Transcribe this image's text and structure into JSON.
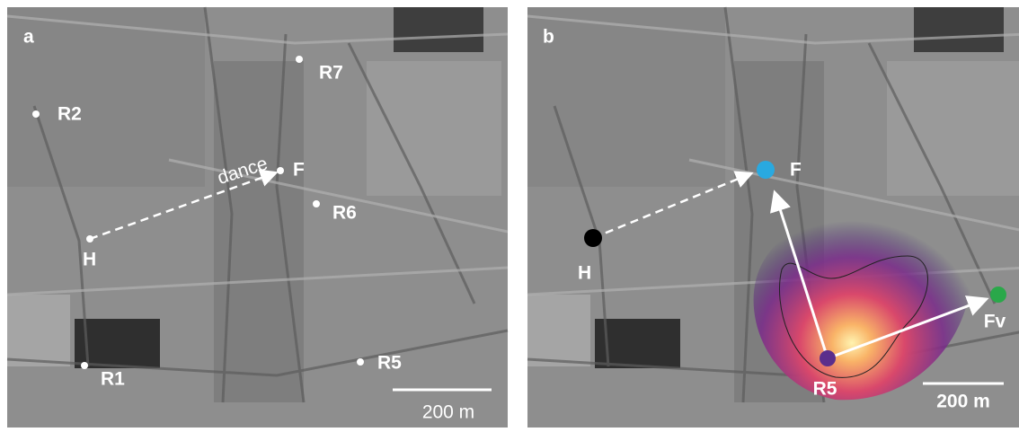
{
  "panels": [
    {
      "label": "a",
      "points": [
        "R7",
        "R2",
        "F",
        "R6",
        "H",
        "R1",
        "R5"
      ],
      "arrow_label": "dance",
      "scale_bar": "200 m"
    },
    {
      "label": "b",
      "points": [
        "H",
        "F",
        "R5",
        "Fv"
      ],
      "scale_bar": "200 m"
    }
  ]
}
